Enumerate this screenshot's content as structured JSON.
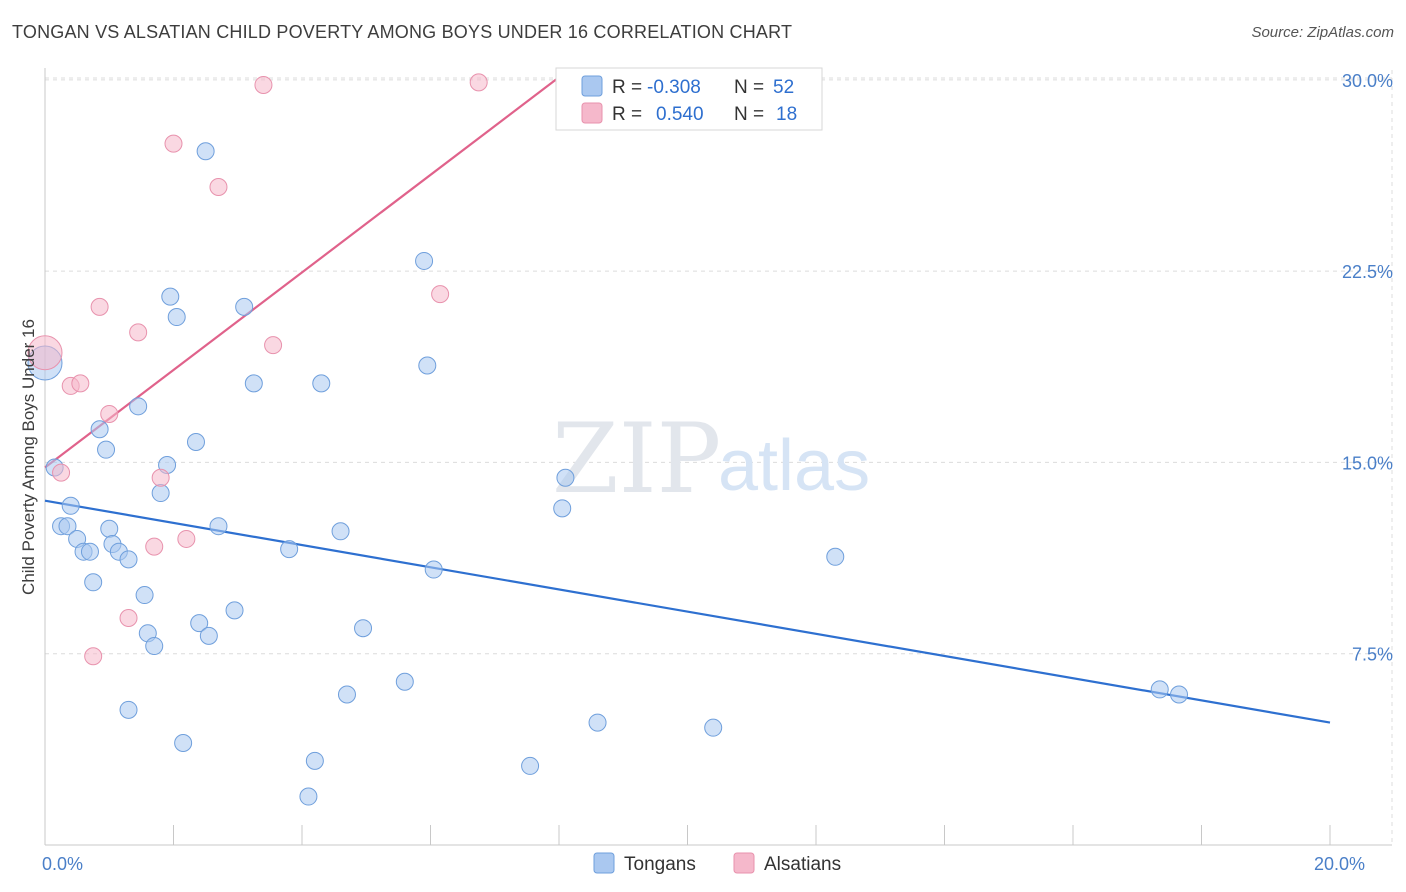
{
  "header": {
    "title": "TONGAN VS ALSATIAN CHILD POVERTY AMONG BOYS UNDER 16 CORRELATION CHART",
    "source": "Source: ZipAtlas.com"
  },
  "watermark": {
    "zip": "ZIP",
    "atlas": "atlas"
  },
  "legend": {
    "rows": [
      {
        "r_label": "R =",
        "r_value": "-0.308",
        "n_label": "N =",
        "n_value": "52",
        "color": "#aac8f0"
      },
      {
        "r_label": "R =",
        "r_value": "0.540",
        "n_label": "N =",
        "n_value": "18",
        "color": "#f5b8cb"
      }
    ]
  },
  "bottom_legend": [
    {
      "label": "Tongans",
      "color": "#aac8f0"
    },
    {
      "label": "Alsatians",
      "color": "#f5b8cb"
    }
  ],
  "chart_data": {
    "type": "scatter",
    "title": "TONGAN VS ALSATIAN CHILD POVERTY AMONG BOYS UNDER 16 CORRELATION CHART",
    "ylabel": "Child Poverty Among Boys Under 16",
    "xlabel": "",
    "xlim": [
      0,
      20
    ],
    "ylim": [
      0,
      30.7
    ],
    "x_tick_labels": [
      {
        "value": 0,
        "label": "0.0%"
      },
      {
        "value": 20,
        "label": "20.0%"
      }
    ],
    "y_tick_labels": [
      {
        "value": 7.5,
        "label": "7.5%"
      },
      {
        "value": 15,
        "label": "15.0%"
      },
      {
        "value": 22.5,
        "label": "22.5%"
      },
      {
        "value": 30,
        "label": "30.0%"
      }
    ],
    "grid": true,
    "legend_position": "top-center",
    "series": [
      {
        "name": "Tongans",
        "color": "#aac8f0",
        "stroke": "#6f9fdc",
        "trend": {
          "x": [
            0,
            20
          ],
          "y": [
            13.5,
            4.8
          ],
          "color": "#2e70d0"
        },
        "points": [
          {
            "x": 0.0,
            "y": 18.9,
            "big": true
          },
          {
            "x": 0.15,
            "y": 14.8
          },
          {
            "x": 0.25,
            "y": 12.5
          },
          {
            "x": 0.35,
            "y": 12.5
          },
          {
            "x": 0.4,
            "y": 13.3
          },
          {
            "x": 0.5,
            "y": 12.0
          },
          {
            "x": 0.6,
            "y": 11.5
          },
          {
            "x": 0.7,
            "y": 11.5
          },
          {
            "x": 0.75,
            "y": 10.3
          },
          {
            "x": 0.85,
            "y": 16.3
          },
          {
            "x": 0.95,
            "y": 15.5
          },
          {
            "x": 1.0,
            "y": 12.4
          },
          {
            "x": 1.05,
            "y": 11.8
          },
          {
            "x": 1.15,
            "y": 11.5
          },
          {
            "x": 1.3,
            "y": 11.2
          },
          {
            "x": 1.3,
            "y": 5.3
          },
          {
            "x": 1.45,
            "y": 17.2
          },
          {
            "x": 1.55,
            "y": 9.8
          },
          {
            "x": 1.6,
            "y": 8.3
          },
          {
            "x": 1.7,
            "y": 7.8
          },
          {
            "x": 1.8,
            "y": 13.8
          },
          {
            "x": 1.9,
            "y": 14.9
          },
          {
            "x": 1.95,
            "y": 21.5
          },
          {
            "x": 2.05,
            "y": 20.7
          },
          {
            "x": 2.15,
            "y": 4.0
          },
          {
            "x": 2.35,
            "y": 15.8
          },
          {
            "x": 2.4,
            "y": 8.7
          },
          {
            "x": 2.5,
            "y": 27.2
          },
          {
            "x": 2.55,
            "y": 8.2
          },
          {
            "x": 2.7,
            "y": 12.5
          },
          {
            "x": 2.95,
            "y": 9.2
          },
          {
            "x": 3.1,
            "y": 21.1
          },
          {
            "x": 3.25,
            "y": 18.1
          },
          {
            "x": 3.8,
            "y": 11.6
          },
          {
            "x": 4.1,
            "y": 1.9
          },
          {
            "x": 4.2,
            "y": 3.3
          },
          {
            "x": 4.3,
            "y": 18.1
          },
          {
            "x": 4.6,
            "y": 12.3
          },
          {
            "x": 4.7,
            "y": 5.9
          },
          {
            "x": 4.95,
            "y": 8.5
          },
          {
            "x": 5.6,
            "y": 6.4
          },
          {
            "x": 5.9,
            "y": 22.9
          },
          {
            "x": 5.95,
            "y": 18.8
          },
          {
            "x": 6.05,
            "y": 10.8
          },
          {
            "x": 7.55,
            "y": 3.1
          },
          {
            "x": 8.05,
            "y": 13.2
          },
          {
            "x": 8.1,
            "y": 14.4
          },
          {
            "x": 8.6,
            "y": 4.8
          },
          {
            "x": 10.4,
            "y": 4.6
          },
          {
            "x": 12.3,
            "y": 11.3
          },
          {
            "x": 17.35,
            "y": 6.1
          },
          {
            "x": 17.65,
            "y": 5.9
          }
        ]
      },
      {
        "name": "Alsatians",
        "color": "#f5b8cb",
        "stroke": "#e892ad",
        "trend": {
          "x": [
            0,
            8.0
          ],
          "y": [
            14.8,
            30.1
          ],
          "color": "#e0628b"
        },
        "points": [
          {
            "x": 0.0,
            "y": 19.3,
            "big": true
          },
          {
            "x": 0.25,
            "y": 14.6
          },
          {
            "x": 0.4,
            "y": 18.0
          },
          {
            "x": 0.55,
            "y": 18.1
          },
          {
            "x": 0.75,
            "y": 7.4
          },
          {
            "x": 0.85,
            "y": 21.1
          },
          {
            "x": 1.0,
            "y": 16.9
          },
          {
            "x": 1.3,
            "y": 8.9
          },
          {
            "x": 1.45,
            "y": 20.1
          },
          {
            "x": 1.7,
            "y": 11.7
          },
          {
            "x": 1.8,
            "y": 14.4
          },
          {
            "x": 2.0,
            "y": 27.5
          },
          {
            "x": 2.2,
            "y": 12.0
          },
          {
            "x": 2.7,
            "y": 25.8
          },
          {
            "x": 3.4,
            "y": 29.8
          },
          {
            "x": 3.55,
            "y": 19.6
          },
          {
            "x": 6.15,
            "y": 21.6
          },
          {
            "x": 6.75,
            "y": 29.9
          }
        ]
      }
    ]
  }
}
